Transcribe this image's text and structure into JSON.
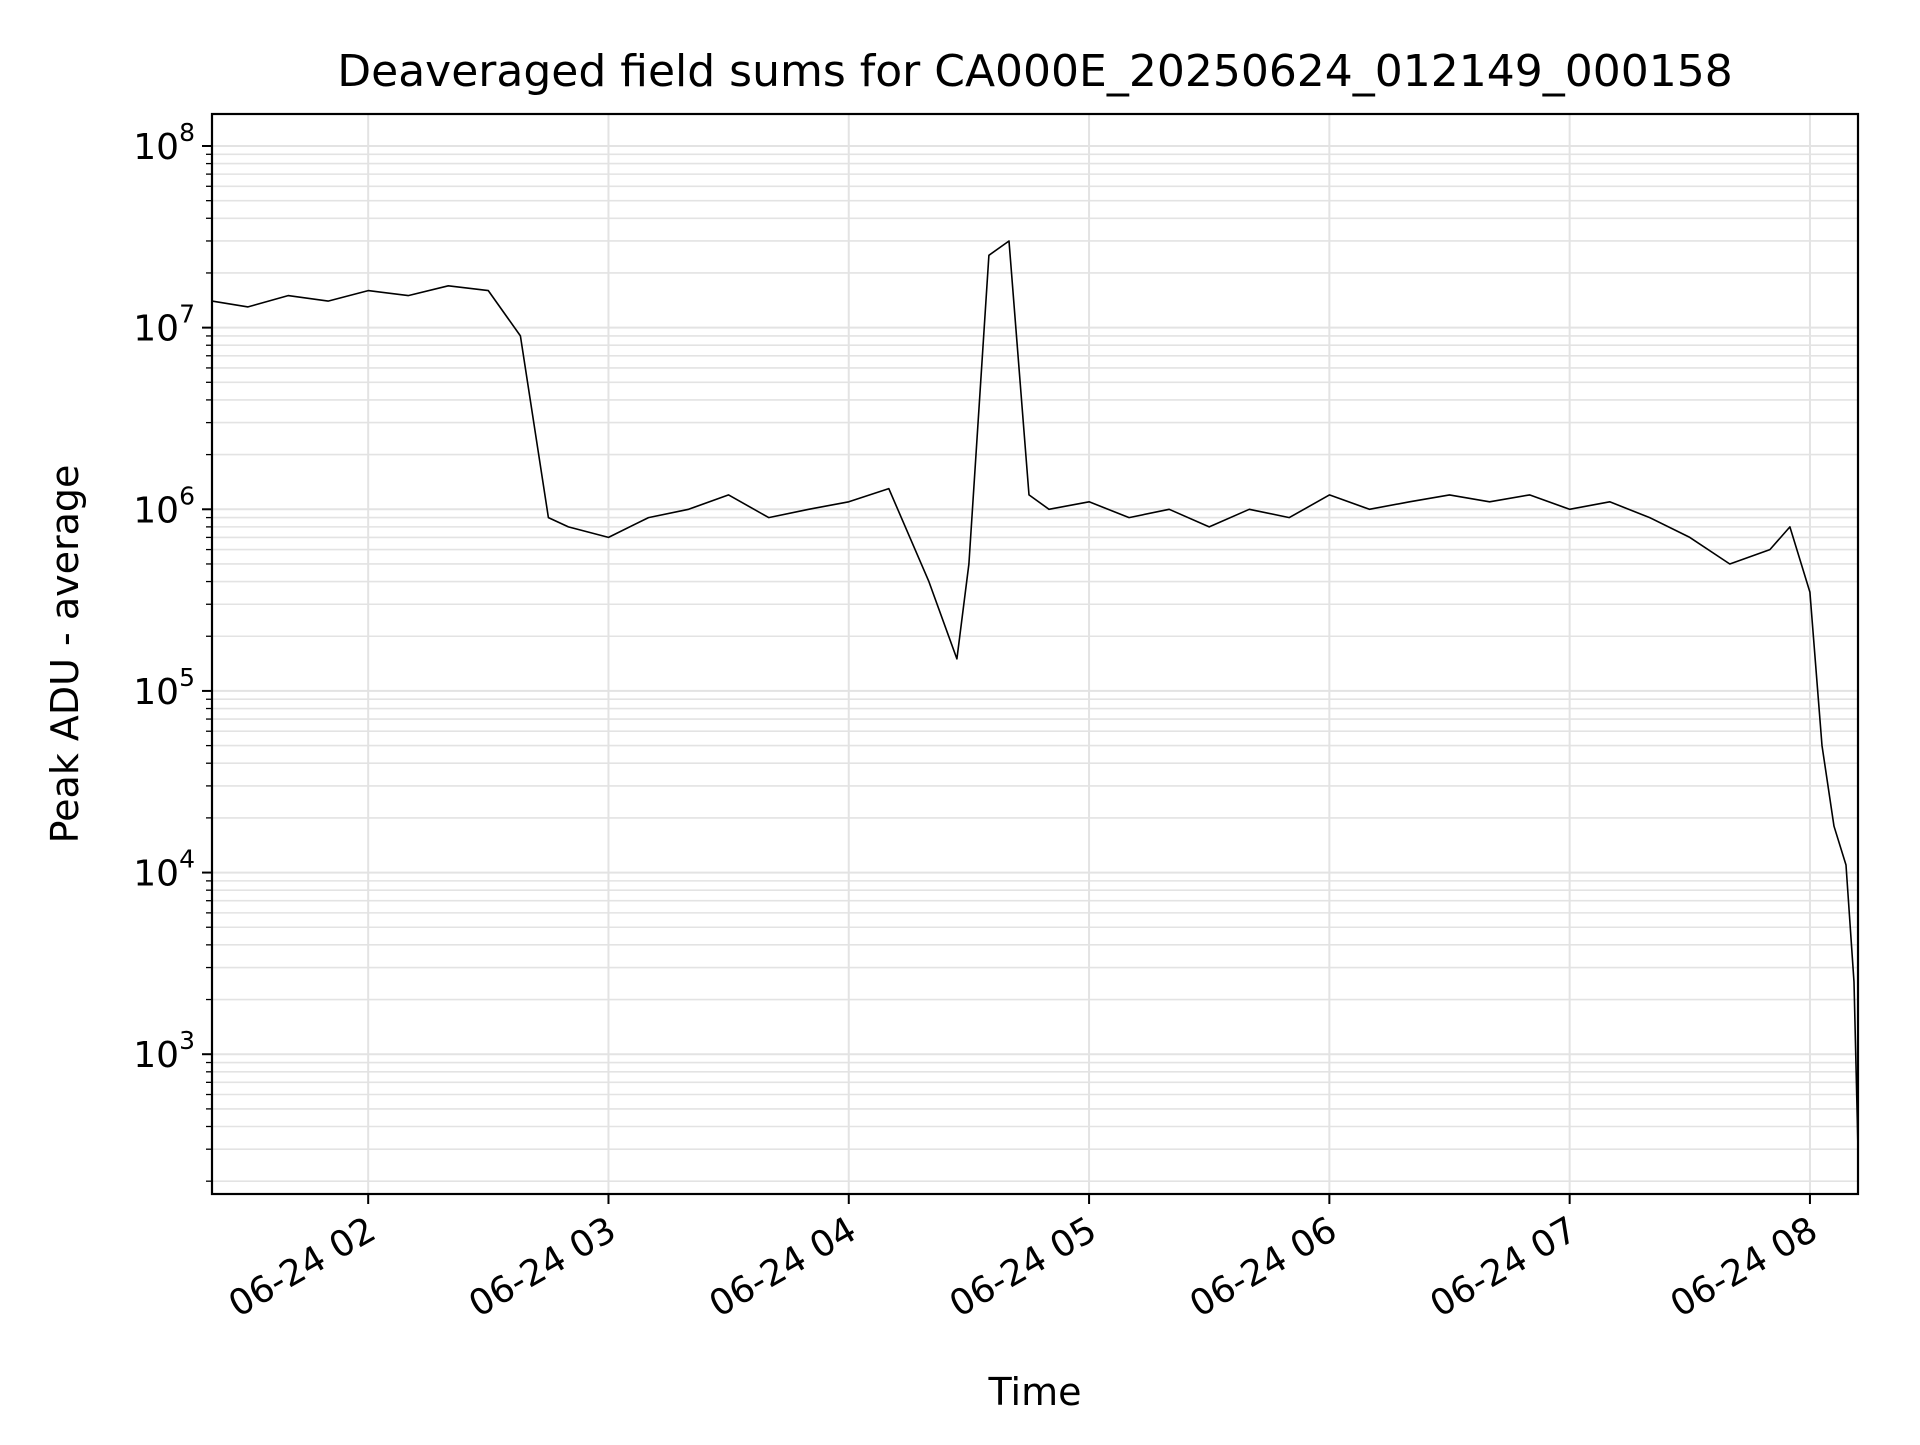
{
  "chart_data": {
    "type": "line",
    "title": "Deaveraged field sums for CA000E_20250624_012149_000158",
    "xlabel": "Time",
    "ylabel": "Peak ADU - average",
    "yscale": "log",
    "ylim": [
      170,
      150000000
    ],
    "xlim": [
      "06-24 01:21",
      "06-24 08:12"
    ],
    "x_ticks": [
      "06-24 02",
      "06-24 03",
      "06-24 04",
      "06-24 05",
      "06-24 06",
      "06-24 07",
      "06-24 08"
    ],
    "y_ticks": [
      {
        "base": "10",
        "exp": "3"
      },
      {
        "base": "10",
        "exp": "4"
      },
      {
        "base": "10",
        "exp": "5"
      },
      {
        "base": "10",
        "exp": "6"
      },
      {
        "base": "10",
        "exp": "7"
      },
      {
        "base": "10",
        "exp": "8"
      }
    ],
    "grid": true,
    "line_color": "#000000",
    "grid_color": "#e3e3e3",
    "series": [
      {
        "x": [
          "06-24 01:21",
          "06-24 01:30",
          "06-24 01:40",
          "06-24 01:50",
          "06-24 02:00",
          "06-24 02:10",
          "06-24 02:20",
          "06-24 02:30",
          "06-24 02:38",
          "06-24 02:45",
          "06-24 02:50",
          "06-24 03:00",
          "06-24 03:10",
          "06-24 03:20",
          "06-24 03:30",
          "06-24 03:40",
          "06-24 03:50",
          "06-24 04:00",
          "06-24 04:10",
          "06-24 04:20",
          "06-24 04:27",
          "06-24 04:30",
          "06-24 04:35",
          "06-24 04:40",
          "06-24 04:45",
          "06-24 04:50",
          "06-24 05:00",
          "06-24 05:10",
          "06-24 05:20",
          "06-24 05:30",
          "06-24 05:40",
          "06-24 05:50",
          "06-24 06:00",
          "06-24 06:10",
          "06-24 06:20",
          "06-24 06:30",
          "06-24 06:40",
          "06-24 06:50",
          "06-24 07:00",
          "06-24 07:10",
          "06-24 07:20",
          "06-24 07:30",
          "06-24 07:40",
          "06-24 07:50",
          "06-24 07:55",
          "06-24 08:00",
          "06-24 08:03",
          "06-24 08:06",
          "06-24 08:09",
          "06-24 08:11",
          "06-24 08:12"
        ],
        "y": [
          14000000,
          13000000,
          15000000,
          14000000,
          16000000,
          15000000,
          17000000,
          16000000,
          9000000,
          900000,
          800000,
          700000,
          900000,
          1000000,
          1200000,
          900000,
          1000000,
          1100000,
          1300000,
          400000,
          150000,
          500000,
          25000000,
          30000000,
          1200000,
          1000000,
          1100000,
          900000,
          1000000,
          800000,
          1000000,
          900000,
          1200000,
          1000000,
          1100000,
          1200000,
          1100000,
          1200000,
          1000000,
          1100000,
          900000,
          700000,
          500000,
          600000,
          800000,
          350000,
          50000,
          18000,
          11000,
          2500,
          300
        ]
      }
    ]
  }
}
